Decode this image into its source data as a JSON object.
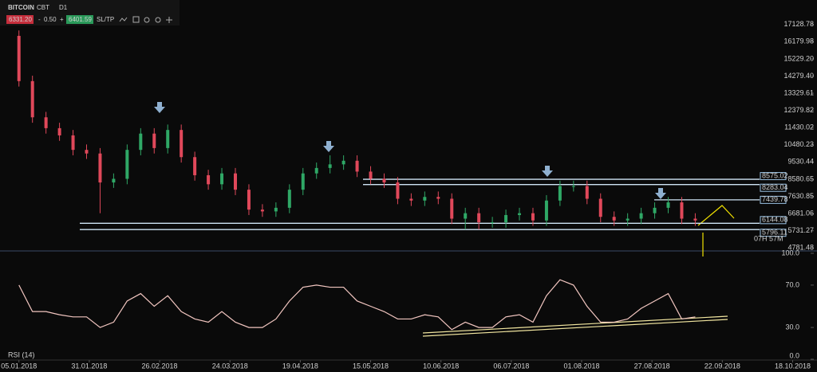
{
  "chart_data": {
    "type": "candlestick",
    "header": {
      "symbol": "BITCOIN",
      "exchange": "CBT",
      "timeframe": "D1",
      "sell": "6331.20",
      "minus": "-",
      "spread": "0.50",
      "plus": "+",
      "buy": "6401.59",
      "sltp": "SL/TP"
    },
    "indicator_label": "RSI (14)",
    "countdown": "07H 57M",
    "x": [
      "05.01.2018",
      "10.01.2018",
      "15.01.2018",
      "20.01.2018",
      "25.01.2018",
      "30.01.2018",
      "04.02.2018",
      "09.02.2018",
      "14.02.2018",
      "19.02.2018",
      "24.02.2018",
      "01.03.2018",
      "06.03.2018",
      "11.03.2018",
      "16.03.2018",
      "21.03.2018",
      "26.03.2018",
      "31.03.2018",
      "05.04.2018",
      "10.04.2018",
      "15.04.2018",
      "20.04.2018",
      "25.04.2018",
      "30.04.2018",
      "05.05.2018",
      "10.05.2018",
      "15.05.2018",
      "20.05.2018",
      "25.05.2018",
      "30.05.2018",
      "04.06.2018",
      "09.06.2018",
      "14.06.2018",
      "19.06.2018",
      "24.06.2018",
      "29.06.2018",
      "04.07.2018",
      "09.07.2018",
      "14.07.2018",
      "19.07.2018",
      "24.07.2018",
      "29.07.2018",
      "03.08.2018",
      "08.08.2018",
      "13.08.2018",
      "18.08.2018",
      "23.08.2018",
      "28.08.2018",
      "02.09.2018",
      "07.09.2018",
      "12.09.2018"
    ],
    "open": [
      16500,
      14000,
      12000,
      11400,
      11000,
      10200,
      10000,
      8400,
      8600,
      10200,
      11100,
      10300,
      11300,
      9800,
      8800,
      8300,
      8900,
      8000,
      6900,
      6800,
      7000,
      8000,
      8900,
      9200,
      9400,
      9600,
      9000,
      8600,
      8400,
      7500,
      7400,
      7600,
      7500,
      6400,
      6700,
      6200,
      6200,
      6600,
      6700,
      6300,
      7400,
      8200,
      8200,
      7500,
      6500,
      6300,
      6400,
      6700,
      7000,
      7300,
      6400
    ],
    "high": [
      16800,
      14300,
      12300,
      11700,
      11300,
      10500,
      10300,
      8900,
      10500,
      11400,
      11400,
      11600,
      11600,
      10100,
      9100,
      9200,
      9200,
      8300,
      7200,
      7300,
      8300,
      9200,
      9500,
      9900,
      9900,
      9900,
      9300,
      8900,
      8700,
      7800,
      7900,
      7900,
      7800,
      7000,
      7000,
      6500,
      6900,
      7000,
      7000,
      7700,
      8500,
      8500,
      8500,
      7800,
      6800,
      6700,
      7000,
      7300,
      7600,
      7600,
      6700
    ],
    "low": [
      13700,
      11700,
      11100,
      10700,
      9900,
      9700,
      6700,
      8100,
      8300,
      9900,
      10000,
      10000,
      9500,
      8500,
      8000,
      8000,
      7700,
      6600,
      6500,
      6500,
      6700,
      7700,
      8600,
      8900,
      9100,
      8700,
      8300,
      8100,
      7200,
      7100,
      7100,
      7200,
      6100,
      5800,
      5800,
      5900,
      5900,
      6300,
      6000,
      6000,
      7100,
      7900,
      7200,
      6200,
      6000,
      6000,
      6100,
      6400,
      6700,
      6100,
      6000
    ],
    "close": [
      14000,
      12000,
      11400,
      11000,
      10200,
      10000,
      8400,
      8600,
      10200,
      11100,
      10300,
      11300,
      9800,
      8800,
      8300,
      8900,
      8000,
      6900,
      6800,
      7000,
      8000,
      8900,
      9200,
      9400,
      9600,
      9000,
      8600,
      8400,
      7500,
      7400,
      7600,
      7500,
      6400,
      6700,
      6200,
      6200,
      6600,
      6700,
      6300,
      7400,
      8200,
      8200,
      7500,
      6500,
      6300,
      6400,
      6700,
      7000,
      7300,
      6400,
      6300
    ],
    "up_color": "#2fa866",
    "down_color": "#e0485a",
    "rsi": {
      "color": "#f2c6c0",
      "values": [
        70,
        45,
        45,
        42,
        40,
        40,
        30,
        35,
        55,
        62,
        50,
        60,
        45,
        38,
        35,
        45,
        35,
        30,
        30,
        38,
        55,
        68,
        70,
        68,
        68,
        55,
        50,
        45,
        38,
        38,
        42,
        40,
        28,
        35,
        30,
        30,
        40,
        42,
        35,
        60,
        75,
        70,
        50,
        35,
        35,
        38,
        48,
        55,
        62,
        38,
        40
      ],
      "ylim": [
        0,
        100
      ],
      "yticks": [
        {
          "value": 0,
          "label": "0.0"
        },
        {
          "value": 30,
          "label": "30.0"
        },
        {
          "value": 70,
          "label": "70.0"
        },
        {
          "value": 100,
          "label": "100.0"
        }
      ]
    },
    "levels": [
      8575.02,
      8283.04,
      7439.78,
      6144.08,
      5796.11
    ],
    "xlim": [
      "29.12.2017",
      "27.10.2018"
    ],
    "xticks": [
      "05.01.2018",
      "31.01.2018",
      "26.02.2018",
      "24.03.2018",
      "19.04.2018",
      "15.05.2018",
      "10.06.2018",
      "06.07.2018",
      "01.08.2018",
      "27.08.2018",
      "22.09.2018",
      "18.10.2018"
    ],
    "ylim": [
      4617,
      18482
    ],
    "yticks": [
      17128.78,
      16179.98,
      {
        "value": 15229.2,
        "label": "15229.20"
      },
      {
        "value": 14279.4,
        "label": "14279.40"
      },
      13329.61,
      12379.82,
      11430.02,
      10480.23,
      9530.44,
      8580.65,
      7630.85,
      6681.06,
      5731.27,
      4781.48
    ]
  }
}
